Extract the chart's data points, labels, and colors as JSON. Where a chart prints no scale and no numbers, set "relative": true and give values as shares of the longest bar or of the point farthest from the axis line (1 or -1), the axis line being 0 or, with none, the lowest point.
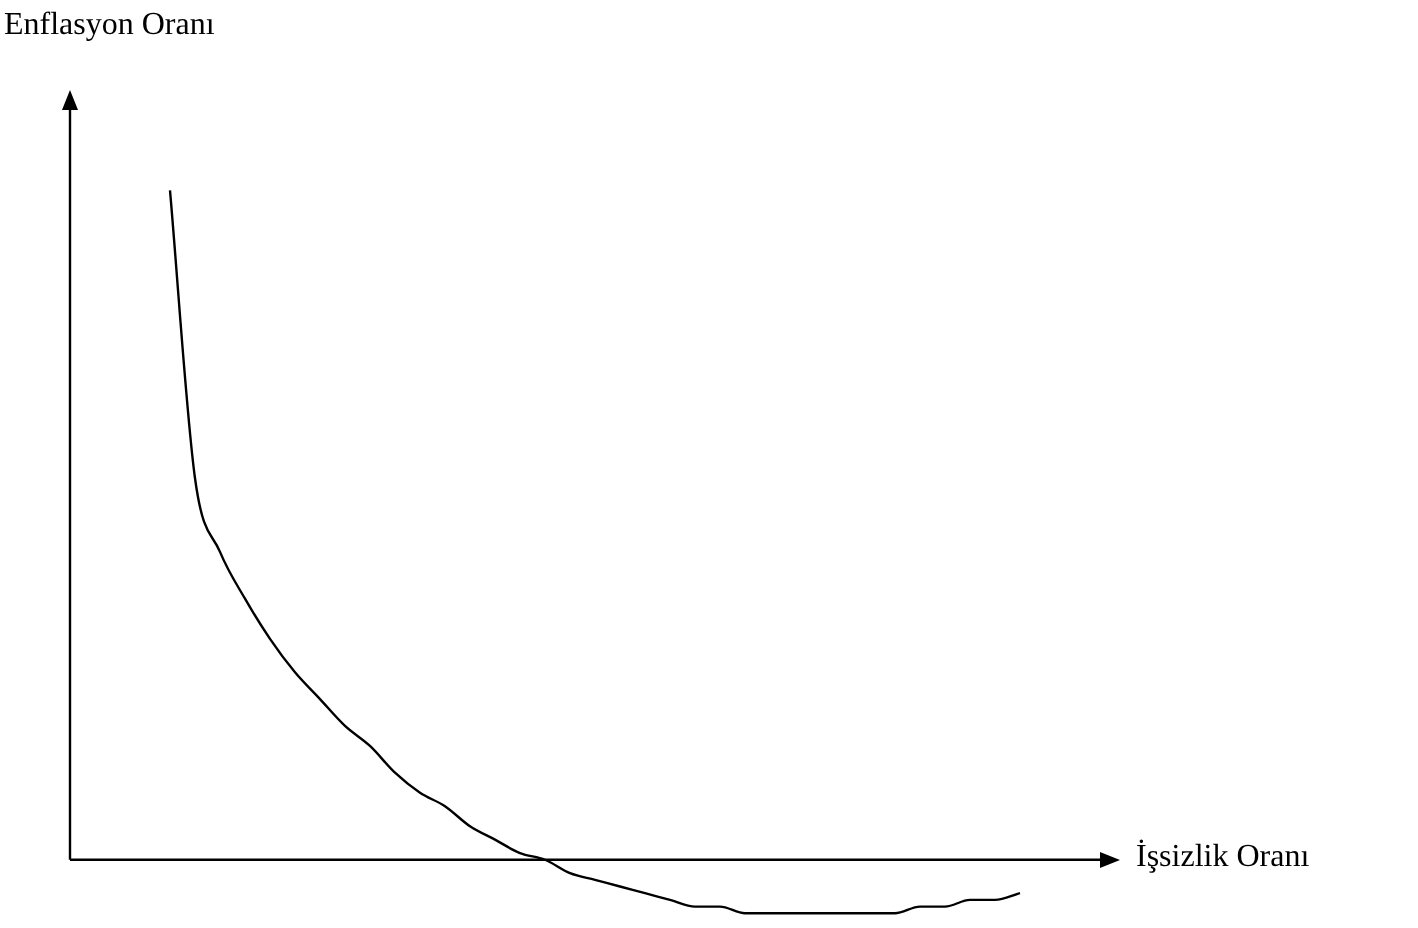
{
  "chart_data": {
    "type": "line",
    "relative": true,
    "xlabel": "İşsizlik Oranı",
    "ylabel": "Enflasyon Oranı",
    "color": "#000000",
    "marker": "none",
    "categories": [
      null,
      null,
      null,
      null,
      null,
      null,
      null,
      null,
      null,
      null,
      null,
      null,
      null,
      null,
      null,
      null,
      null,
      null,
      null,
      null,
      null,
      null,
      null,
      null,
      null,
      null,
      null,
      null,
      null,
      null,
      null,
      null,
      null,
      null,
      null,
      null,
      null,
      null,
      null,
      null,
      null,
      null,
      null
    ],
    "values": [
      null,
      null,
      null,
      null,
      1,
      0.57,
      0.46,
      0.39,
      0.33,
      0.28,
      0.24,
      0.2,
      0.17,
      0.13,
      0.1,
      0.08,
      0.05,
      0.03,
      0.01,
      0,
      -0.02,
      -0.03,
      -0.04,
      -0.05,
      -0.06,
      -0.07,
      -0.07,
      -0.08,
      -0.08,
      -0.08,
      -0.08,
      -0.08,
      -0.08,
      -0.08,
      -0.07,
      -0.07,
      -0.06,
      -0.06,
      -0.05,
      null,
      null,
      null,
      null
    ]
  }
}
